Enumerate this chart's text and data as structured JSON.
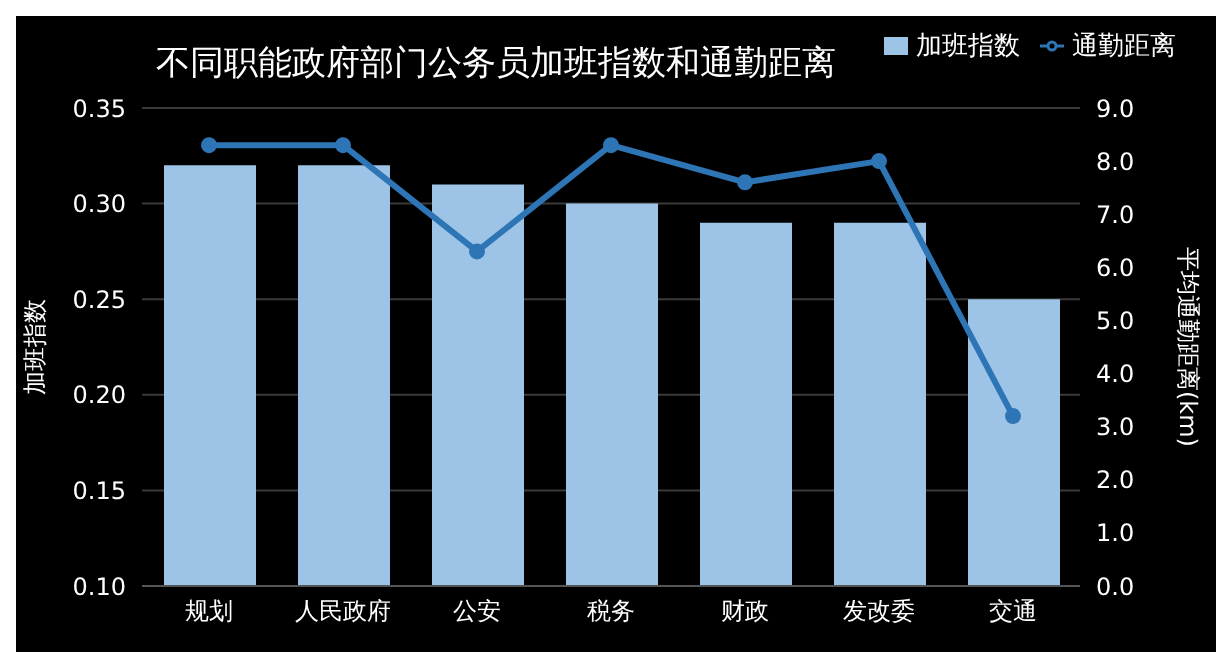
{
  "chart_data": {
    "type": "bar",
    "title": "不同职能政府部门公务员加班指数和通勤距离",
    "categories": [
      "规划",
      "人民政府",
      "公安",
      "税务",
      "财政",
      "发改委",
      "交通"
    ],
    "series": [
      {
        "name": "加班指数",
        "color": "#9dc3e6",
        "values": [
          0.32,
          0.32,
          0.31,
          0.3,
          0.29,
          0.29,
          0.25
        ]
      },
      {
        "name": "通勤距离",
        "type": "line",
        "axis": "y2",
        "color": "#2e75b6",
        "values": [
          8.3,
          8.3,
          6.3,
          8.3,
          7.6,
          8.0,
          3.2
        ]
      }
    ],
    "ylabel": "加班指数",
    "y2label": "平均通勤距离(km)",
    "ylim": [
      0.1,
      0.35
    ],
    "yticks": [
      {
        "value": 0.1,
        "label": "0.10"
      },
      {
        "value": 0.15,
        "label": "0.15"
      },
      {
        "value": 0.2,
        "label": "0.20"
      },
      {
        "value": 0.25,
        "label": "0.25"
      },
      {
        "value": 0.3,
        "label": "0.30"
      },
      {
        "value": 0.35,
        "label": "0.35"
      }
    ],
    "y2lim": [
      0,
      9
    ],
    "y2ticks": [
      {
        "value": 0,
        "label": "0.0"
      },
      {
        "value": 1,
        "label": "1.0"
      },
      {
        "value": 2,
        "label": "2.0"
      },
      {
        "value": 3,
        "label": "3.0"
      },
      {
        "value": 4,
        "label": "4.0"
      },
      {
        "value": 5,
        "label": "5.0"
      },
      {
        "value": 6,
        "label": "6.0"
      },
      {
        "value": 7,
        "label": "7.0"
      },
      {
        "value": 8,
        "label": "8.0"
      },
      {
        "value": 9,
        "label": "9.0"
      }
    ],
    "grid": "y",
    "legend": "top right",
    "marker": "circle",
    "line_style": "solid"
  }
}
